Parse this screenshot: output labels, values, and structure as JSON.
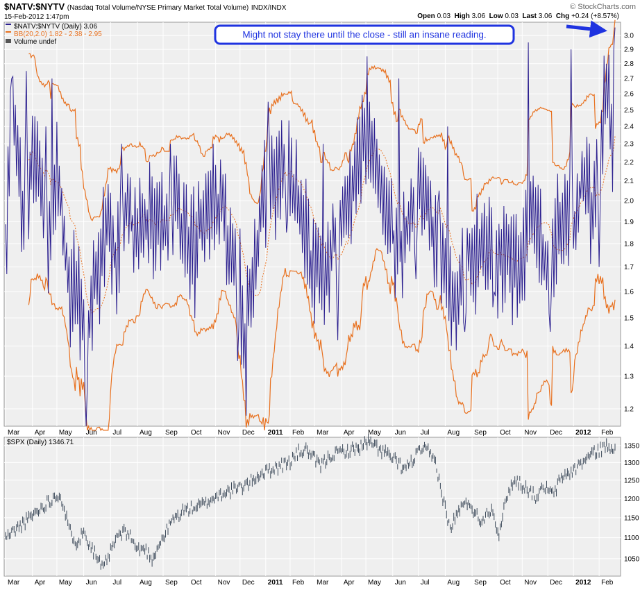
{
  "header": {
    "symbol": "$NATV:$NYTV",
    "description": "(Nasdaq Total Volume/NYSE Primary Market Total Volume)",
    "exchange": "INDX/INDX",
    "date": "15-Feb-2012 1:47pm",
    "brand": "© StockCharts.com",
    "open_label": "Open",
    "open_value": "0.03",
    "high_label": "High",
    "high_value": "3.06",
    "low_label": "Low",
    "low_value": "0.03",
    "last_label": "Last",
    "last_value": "3.06",
    "chg_label": "Chg",
    "chg_value": "+0.24 (+8.57%)"
  },
  "colors": {
    "main_line": "#2b1f8f",
    "bb_band": "#e8701e",
    "spx_line": "#3d4a5a",
    "panel_bg": "#efefef",
    "grid": "#ffffff",
    "annotation_border": "#1f33e0",
    "annotation_text": "#1f33e0"
  },
  "chart_data": [
    {
      "type": "line",
      "title": "$NATV:$NYTV (Daily) 3.06",
      "legend": [
        "$NATV:$NYTV (Daily) 3.06",
        "BB(20,2.0) 1.82 - 2.38 - 2.95",
        "Volume undef"
      ],
      "y_scale": "log",
      "ylim": [
        1.15,
        3.1
      ],
      "y_ticks": [
        "1.2",
        "1.3",
        "1.4",
        "1.5",
        "1.6",
        "1.7",
        "1.8",
        "1.9",
        "2.0",
        "2.1",
        "2.2",
        "2.3",
        "2.4",
        "2.5",
        "2.6",
        "2.7",
        "2.8",
        "2.9",
        "3.0"
      ],
      "x_labels": [
        "Mar",
        "Apr",
        "May",
        "Jun",
        "Jul",
        "Aug",
        "Sep",
        "Oct",
        "Nov",
        "Dec",
        "2011",
        "Feb",
        "Mar",
        "Apr",
        "May",
        "Jun",
        "Jul",
        "Aug",
        "Sep",
        "Oct",
        "Nov",
        "Dec",
        "2012",
        "Feb"
      ],
      "x_label_index": [
        0,
        22,
        42,
        64,
        86,
        108,
        129,
        150,
        172,
        192,
        213,
        233,
        253,
        275,
        295,
        317,
        338,
        360,
        382,
        403,
        423,
        444,
        465,
        486
      ],
      "n_points": 500,
      "anchors": [
        [
          0,
          1.75
        ],
        [
          5,
          2.55
        ],
        [
          15,
          1.95
        ],
        [
          25,
          2.3
        ],
        [
          35,
          1.75
        ],
        [
          42,
          2.2
        ],
        [
          50,
          1.7
        ],
        [
          58,
          1.6
        ],
        [
          63,
          1.5
        ],
        [
          66,
          1.3
        ],
        [
          70,
          1.55
        ],
        [
          76,
          1.7
        ],
        [
          82,
          1.9
        ],
        [
          90,
          1.75
        ],
        [
          100,
          1.95
        ],
        [
          110,
          1.85
        ],
        [
          120,
          1.9
        ],
        [
          130,
          1.85
        ],
        [
          140,
          2.0
        ],
        [
          150,
          1.75
        ],
        [
          160,
          1.95
        ],
        [
          170,
          2.0
        ],
        [
          180,
          1.9
        ],
        [
          190,
          1.7
        ],
        [
          196,
          1.45
        ],
        [
          200,
          1.55
        ],
        [
          210,
          2.0
        ],
        [
          220,
          2.1
        ],
        [
          230,
          2.2
        ],
        [
          240,
          2.0
        ],
        [
          250,
          1.75
        ],
        [
          260,
          1.65
        ],
        [
          270,
          1.85
        ],
        [
          280,
          2.0
        ],
        [
          290,
          2.3
        ],
        [
          300,
          2.3
        ],
        [
          306,
          2.1
        ],
        [
          312,
          2.0
        ],
        [
          320,
          1.75
        ],
        [
          330,
          1.9
        ],
        [
          340,
          2.1
        ],
        [
          345,
          2.0
        ],
        [
          352,
          1.8
        ],
        [
          360,
          1.65
        ],
        [
          370,
          1.6
        ],
        [
          380,
          1.75
        ],
        [
          390,
          1.8
        ],
        [
          400,
          1.75
        ],
        [
          410,
          1.8
        ],
        [
          420,
          1.7
        ],
        [
          430,
          1.95
        ],
        [
          436,
          1.9
        ],
        [
          442,
          1.65
        ],
        [
          450,
          1.85
        ],
        [
          460,
          1.95
        ],
        [
          466,
          1.9
        ],
        [
          470,
          2.05
        ],
        [
          476,
          2.2
        ],
        [
          480,
          1.8
        ],
        [
          483,
          2.05
        ],
        [
          487,
          2.3
        ],
        [
          490,
          2.5
        ],
        [
          493,
          2.8
        ],
        [
          495,
          2.4
        ],
        [
          497,
          2.2
        ],
        [
          499,
          3.06
        ]
      ],
      "spikes": [
        [
          5,
          2.7
        ],
        [
          17,
          2.75
        ],
        [
          33,
          2.4
        ],
        [
          38,
          2.7
        ],
        [
          55,
          1.45
        ],
        [
          66,
          1.15
        ],
        [
          75,
          1.55
        ],
        [
          95,
          2.3
        ],
        [
          118,
          2.2
        ],
        [
          135,
          2.3
        ],
        [
          155,
          1.5
        ],
        [
          170,
          2.3
        ],
        [
          177,
          1.9
        ],
        [
          190,
          1.35
        ],
        [
          197,
          1.18
        ],
        [
          215,
          2.55
        ],
        [
          230,
          1.85
        ],
        [
          260,
          2.3
        ],
        [
          272,
          1.42
        ],
        [
          296,
          2.85
        ],
        [
          302,
          2.45
        ],
        [
          322,
          2.7
        ],
        [
          336,
          1.65
        ],
        [
          355,
          2.05
        ],
        [
          362,
          2.4
        ],
        [
          376,
          1.45
        ],
        [
          400,
          1.6
        ],
        [
          428,
          2.95
        ],
        [
          446,
          1.45
        ],
        [
          463,
          2.9
        ],
        [
          486,
          1.7
        ],
        [
          488,
          2.5
        ],
        [
          492,
          2.8
        ]
      ],
      "amplitude": 0.13,
      "bollinger": {
        "period": 20,
        "multiplier": 2.0,
        "lower": 1.82,
        "middle": 2.38,
        "upper": 2.95
      }
    },
    {
      "type": "line",
      "title": "$SPX (Daily) 1346.71",
      "y_scale": "log",
      "ylim": [
        1010,
        1375
      ],
      "y_ticks": [
        "1050",
        "1100",
        "1150",
        "1200",
        "1250",
        "1300",
        "1350"
      ],
      "x_labels": [
        "Mar",
        "Apr",
        "May",
        "Jun",
        "Jul",
        "Aug",
        "Sep",
        "Oct",
        "Nov",
        "Dec",
        "2011",
        "Feb",
        "Mar",
        "Apr",
        "May",
        "Jun",
        "Jul",
        "Aug",
        "Sep",
        "Oct",
        "Nov",
        "Dec",
        "2012",
        "Feb"
      ],
      "x_label_index": [
        0,
        22,
        42,
        64,
        86,
        108,
        129,
        150,
        172,
        192,
        213,
        233,
        253,
        275,
        295,
        317,
        338,
        360,
        382,
        403,
        423,
        444,
        465,
        486
      ],
      "n_points": 500,
      "anchors": [
        [
          0,
          1100
        ],
        [
          20,
          1150
        ],
        [
          40,
          1205
        ],
        [
          45,
          1210
        ],
        [
          52,
          1120
        ],
        [
          58,
          1090
        ],
        [
          64,
          1115
        ],
        [
          70,
          1080
        ],
        [
          80,
          1025
        ],
        [
          85,
          1060
        ],
        [
          92,
          1105
        ],
        [
          100,
          1115
        ],
        [
          108,
          1070
        ],
        [
          114,
          1075
        ],
        [
          120,
          1050
        ],
        [
          128,
          1095
        ],
        [
          136,
          1140
        ],
        [
          144,
          1165
        ],
        [
          152,
          1175
        ],
        [
          160,
          1180
        ],
        [
          170,
          1200
        ],
        [
          180,
          1220
        ],
        [
          190,
          1225
        ],
        [
          200,
          1245
        ],
        [
          210,
          1270
        ],
        [
          220,
          1285
        ],
        [
          232,
          1300
        ],
        [
          240,
          1330
        ],
        [
          246,
          1340
        ],
        [
          252,
          1310
        ],
        [
          258,
          1290
        ],
        [
          266,
          1320
        ],
        [
          274,
          1330
        ],
        [
          282,
          1335
        ],
        [
          290,
          1345
        ],
        [
          296,
          1360
        ],
        [
          304,
          1345
        ],
        [
          312,
          1325
        ],
        [
          320,
          1300
        ],
        [
          326,
          1280
        ],
        [
          332,
          1300
        ],
        [
          340,
          1340
        ],
        [
          346,
          1330
        ],
        [
          352,
          1300
        ],
        [
          358,
          1200
        ],
        [
          364,
          1120
        ],
        [
          372,
          1175
        ],
        [
          380,
          1190
        ],
        [
          388,
          1140
        ],
        [
          398,
          1175
        ],
        [
          404,
          1110
        ],
        [
          412,
          1225
        ],
        [
          418,
          1250
        ],
        [
          426,
          1230
        ],
        [
          434,
          1205
        ],
        [
          442,
          1230
        ],
        [
          448,
          1210
        ],
        [
          456,
          1260
        ],
        [
          464,
          1275
        ],
        [
          472,
          1300
        ],
        [
          480,
          1325
        ],
        [
          490,
          1345
        ],
        [
          499,
          1346.71
        ]
      ],
      "amplitude": 0.012
    }
  ],
  "annotation": {
    "text": "Might not stay there until the close - still an insane reading."
  }
}
